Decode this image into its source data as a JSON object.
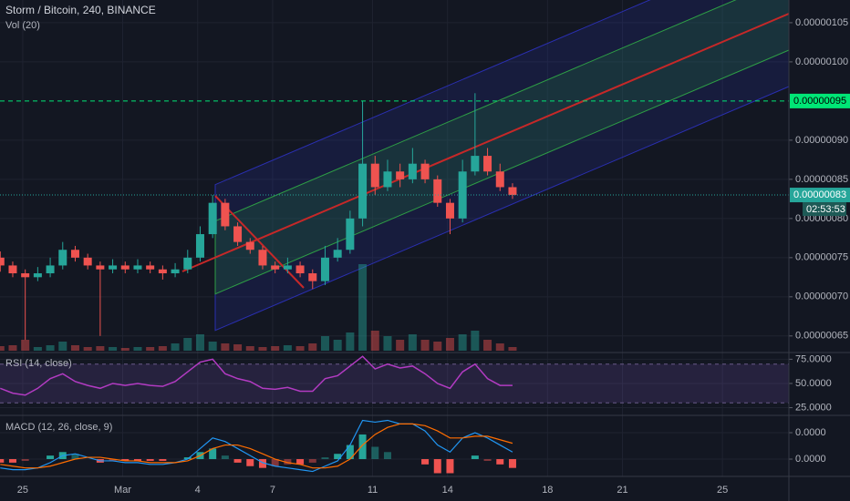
{
  "chart_data": [
    {
      "type": "candlestick",
      "title": "Storm / Bitcoin, 240, BINANCE",
      "volume_title": "Vol (20)",
      "x": [
        -0.9,
        -0.4,
        0.1,
        0.6,
        1.1,
        1.6,
        2.1,
        2.6,
        3.1,
        3.6,
        4.1,
        4.6,
        5.1,
        5.6,
        6.1,
        6.6,
        7.1,
        7.6,
        8.1,
        8.6,
        9.1,
        9.6,
        10.1,
        10.6,
        11.1,
        11.6,
        12.1,
        12.6,
        13.1,
        13.6,
        14.1,
        14.6,
        15.1,
        15.6,
        16.1,
        16.6,
        17.1,
        17.6,
        18.1,
        18.6,
        19.1,
        19.6
      ],
      "xlim": [
        -0.91,
        30.66
      ],
      "xticks": [
        {
          "value": 0,
          "label": "25"
        },
        {
          "value": 4,
          "label": "Mar"
        },
        {
          "value": 7,
          "label": "4"
        },
        {
          "value": 10,
          "label": "7"
        },
        {
          "value": 14,
          "label": "11"
        },
        {
          "value": 17,
          "label": "14"
        },
        {
          "value": 21,
          "label": "18"
        },
        {
          "value": 24,
          "label": "21"
        },
        {
          "value": 28,
          "label": "25"
        }
      ],
      "open": [
        7.5e-07,
        7.4e-07,
        7.3e-07,
        7.25e-07,
        7.3e-07,
        7.4e-07,
        7.6e-07,
        7.5e-07,
        7.4e-07,
        7.35e-07,
        7.4e-07,
        7.35e-07,
        7.4e-07,
        7.35e-07,
        7.3e-07,
        7.35e-07,
        7.5e-07,
        7.8e-07,
        8.2e-07,
        7.9e-07,
        7.7e-07,
        7.6e-07,
        7.4e-07,
        7.35e-07,
        7.4e-07,
        7.3e-07,
        7.2e-07,
        7.5e-07,
        7.6e-07,
        8e-07,
        8.7e-07,
        8.4e-07,
        8.6e-07,
        8.5e-07,
        8.7e-07,
        8.5e-07,
        8.2e-07,
        8e-07,
        8.6e-07,
        8.8e-07,
        8.6e-07,
        8.4e-07
      ],
      "high": [
        7.58e-07,
        7.45e-07,
        7.35e-07,
        7.38e-07,
        7.5e-07,
        7.7e-07,
        7.65e-07,
        7.55e-07,
        7.45e-07,
        7.48e-07,
        7.45e-07,
        7.48e-07,
        7.45e-07,
        7.4e-07,
        7.43e-07,
        7.6e-07,
        7.9e-07,
        8.3e-07,
        8.25e-07,
        7.95e-07,
        7.75e-07,
        7.65e-07,
        7.45e-07,
        7.5e-07,
        7.45e-07,
        7.35e-07,
        7.65e-07,
        7.75e-07,
        8.1e-07,
        9.5e-07,
        8.8e-07,
        8.75e-07,
        8.7e-07,
        8.9e-07,
        8.75e-07,
        8.55e-07,
        8.25e-07,
        8.75e-07,
        9.6e-07,
        8.9e-07,
        8.7e-07,
        8.45e-07
      ],
      "low": [
        7.32e-07,
        7.25e-07,
        6.45e-07,
        7.2e-07,
        7.25e-07,
        7.35e-07,
        7.45e-07,
        7.35e-07,
        6.5e-07,
        7.3e-07,
        7.3e-07,
        7.3e-07,
        7.3e-07,
        7.22e-07,
        7.25e-07,
        7.3e-07,
        7.45e-07,
        7.75e-07,
        7.85e-07,
        7.65e-07,
        7.55e-07,
        7.35e-07,
        7.3e-07,
        7.3e-07,
        7.25e-07,
        7.1e-07,
        7.15e-07,
        7.45e-07,
        7.55e-07,
        7.9e-07,
        8.3e-07,
        8.35e-07,
        8.4e-07,
        8.45e-07,
        8.45e-07,
        8.15e-07,
        7.8e-07,
        7.95e-07,
        8.55e-07,
        8.55e-07,
        8.35e-07,
        8.25e-07
      ],
      "close": [
        7.4e-07,
        7.3e-07,
        7.25e-07,
        7.3e-07,
        7.4e-07,
        7.6e-07,
        7.5e-07,
        7.4e-07,
        7.35e-07,
        7.4e-07,
        7.35e-07,
        7.4e-07,
        7.35e-07,
        7.3e-07,
        7.35e-07,
        7.5e-07,
        7.8e-07,
        8.2e-07,
        7.9e-07,
        7.7e-07,
        7.6e-07,
        7.4e-07,
        7.35e-07,
        7.4e-07,
        7.3e-07,
        7.2e-07,
        7.5e-07,
        7.6e-07,
        8e-07,
        8.7e-07,
        8.4e-07,
        8.6e-07,
        8.5e-07,
        8.7e-07,
        8.5e-07,
        8.2e-07,
        8e-07,
        8.6e-07,
        8.8e-07,
        8.6e-07,
        8.4e-07,
        8.3e-07
      ],
      "volume": [
        5,
        6,
        12,
        4,
        6,
        10,
        6,
        4,
        5,
        4,
        3,
        4,
        4,
        5,
        8,
        14,
        18,
        10,
        8,
        7,
        5,
        4,
        5,
        6,
        5,
        8,
        16,
        12,
        20,
        95,
        22,
        16,
        12,
        18,
        12,
        10,
        14,
        18,
        22,
        12,
        8,
        4
      ],
      "up_color": "#26a69a",
      "down_color": "#ef5350",
      "ylim": [
        6.3e-07,
        1.079e-06
      ],
      "yticks": [
        {
          "value": 6.5e-07,
          "label": "0.00000065"
        },
        {
          "value": 7e-07,
          "label": "0.00000070"
        },
        {
          "value": 7.5e-07,
          "label": "0.00000075"
        },
        {
          "value": 8e-07,
          "label": "0.00000080"
        },
        {
          "value": 8.5e-07,
          "label": "0.00000085"
        },
        {
          "value": 9e-07,
          "label": "0.00000090"
        },
        {
          "value": 1e-06,
          "label": "0.00000100"
        },
        {
          "value": 1.05e-06,
          "label": "0.00000105"
        }
      ],
      "alert_line": {
        "value": 9.5e-07,
        "label": "0.00000095",
        "color": "#00e676"
      },
      "last_price": {
        "value": 8.3e-07,
        "label": "0.00000083",
        "countdown": "02:53:53",
        "color": "#26a69a"
      },
      "grid": true
    },
    {
      "type": "line",
      "title": "RSI (14, close)",
      "color": "#b23bc2",
      "values": [
        45,
        40,
        38,
        45,
        55,
        60,
        52,
        48,
        45,
        50,
        48,
        50,
        48,
        47,
        52,
        62,
        72,
        75,
        60,
        55,
        52,
        45,
        44,
        46,
        42,
        42,
        55,
        58,
        68,
        78,
        65,
        70,
        66,
        68,
        60,
        50,
        45,
        62,
        70,
        55,
        48,
        48
      ],
      "band": [
        30,
        70
      ],
      "ylim": [
        18,
        81
      ],
      "yticks": [
        {
          "value": 25,
          "label": "25.0000"
        },
        {
          "value": 50,
          "label": "50.0000"
        },
        {
          "value": 75,
          "label": "75.0000"
        }
      ]
    },
    {
      "type": "macd",
      "title": "MACD (12, 26, close, 9)",
      "series": [
        {
          "name": "MACD",
          "color": "#2196f3",
          "values": [
            -5e-09,
            -6e-09,
            -6e-09,
            -5e-09,
            -2e-09,
            2e-09,
            3e-09,
            1e-09,
            -1e-09,
            -1e-09,
            -2e-09,
            -2e-09,
            -3e-09,
            -3e-09,
            -2e-09,
            0,
            6e-09,
            1.2e-08,
            1e-08,
            6e-09,
            2e-09,
            -2e-09,
            -4e-09,
            -5e-09,
            -6e-09,
            -7e-09,
            -4e-09,
            -1e-09,
            8e-09,
            2.2e-08,
            2.1e-08,
            2.2e-08,
            2e-08,
            2e-08,
            1.6e-08,
            8e-09,
            4e-09,
            1.2e-08,
            1.5e-08,
            1.2e-08,
            8e-09,
            4e-09
          ]
        },
        {
          "name": "Signal",
          "color": "#ff6d00",
          "values": [
            -3e-09,
            -4e-09,
            -5e-09,
            -5e-09,
            -4e-09,
            -2e-09,
            0,
            1e-09,
            1e-09,
            0,
            -1e-09,
            -1e-09,
            -2e-09,
            -2e-09,
            -2e-09,
            -1e-09,
            2e-09,
            6e-09,
            8e-09,
            8e-09,
            6e-09,
            3e-09,
            0,
            -2e-09,
            -3e-09,
            -5e-09,
            -5e-09,
            -4e-09,
            0,
            8e-09,
            1.4e-08,
            1.8e-08,
            2e-08,
            2e-08,
            1.9e-08,
            1.6e-08,
            1.2e-08,
            1.2e-08,
            1.3e-08,
            1.3e-08,
            1.1e-08,
            9e-09
          ]
        },
        {
          "name": "Histogram",
          "color": "#26a69a",
          "negative_color": "#ef5350",
          "values": [
            -2e-09,
            -2e-09,
            -1e-09,
            0,
            2e-09,
            4e-09,
            3e-09,
            0,
            -2e-09,
            -1e-09,
            -1e-09,
            -1e-09,
            -1e-09,
            -1e-09,
            0,
            1e-09,
            4e-09,
            6e-09,
            2e-09,
            -2e-09,
            -4e-09,
            -5e-09,
            -4e-09,
            -3e-09,
            -3e-09,
            -2e-09,
            1e-09,
            3e-09,
            8e-09,
            1.4e-08,
            7e-09,
            4e-09,
            0,
            0,
            -3e-09,
            -8e-09,
            -8e-09,
            0,
            2e-09,
            -1e-09,
            -3e-09,
            -5e-09
          ]
        }
      ],
      "ylim": [
        -9.3e-09,
        2.38e-08
      ],
      "yticks": [
        {
          "value": 0,
          "label": "0.0000"
        },
        {
          "value": 1.5e-08,
          "label": "0.0000"
        }
      ]
    }
  ]
}
